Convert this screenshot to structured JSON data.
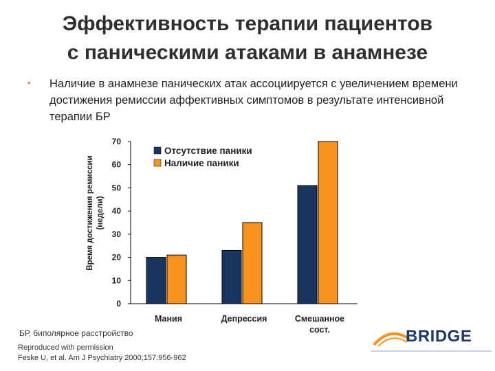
{
  "title": {
    "line1": "Эффективность терапии пациентов",
    "line2": "с паническими атаками в анамнезе"
  },
  "bullet": {
    "text": "Наличие в анамнезе панических атак ассоциируется с увеличением времени достижения ремиссии аффективных симптомов в результате интенсивной терапии БР"
  },
  "chart_data": {
    "type": "bar",
    "categories": [
      "Мания",
      "Депрессия",
      "Смешанное сост."
    ],
    "series": [
      {
        "name": "Отсутствие паники",
        "values": [
          20,
          23,
          51
        ],
        "color": "#1a3560"
      },
      {
        "name": "Наличие паники",
        "values": [
          21,
          35,
          70
        ],
        "color": "#f7931e"
      }
    ],
    "ylabel_line1": "Время достижения ремиссии",
    "ylabel_line2": "(недели)",
    "ylim": [
      0,
      70
    ],
    "yticks": [
      0,
      10,
      20,
      30,
      40,
      50,
      60,
      70
    ],
    "grid": false,
    "legend_position": "top-left"
  },
  "footnotes": {
    "abbrev": "БР, биполярное расстройство",
    "source_line1": "Reproduced with permission",
    "source_line2": "Feske U, et al. Am J Psychiatry 2000;157:956-962"
  },
  "logo": {
    "text": "BRIDGE",
    "accent_color": "#f7931e",
    "brand_color": "#1f3a6b"
  }
}
